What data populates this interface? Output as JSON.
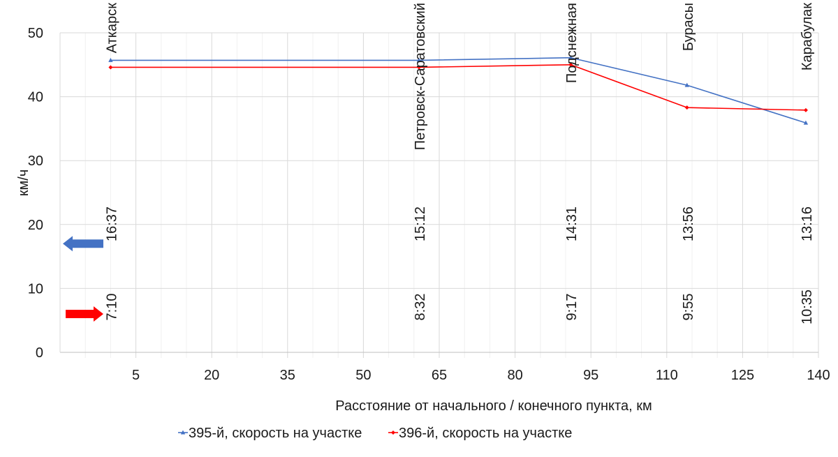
{
  "chart_data": {
    "type": "line",
    "xlabel": "Расстояние от начального / конечного пункта, км",
    "ylabel": "км/ч",
    "xlim": [
      -10,
      140
    ],
    "ylim": [
      0,
      50
    ],
    "x_ticks": [
      5,
      20,
      35,
      50,
      65,
      80,
      95,
      110,
      125,
      140
    ],
    "y_ticks": [
      0,
      10,
      20,
      30,
      40,
      50
    ],
    "minor_grid_step": 5,
    "grid": true,
    "legend_position": "bottom",
    "series": [
      {
        "name": "395-й, скорость на участке",
        "color": "#4472c4",
        "marker": "triangle",
        "points": [
          [
            0,
            45.7
          ],
          [
            61,
            45.7
          ],
          [
            91,
            46.1
          ],
          [
            114,
            41.8
          ],
          [
            137.5,
            35.9
          ]
        ]
      },
      {
        "name": "396-й, скорость на участке",
        "color": "#ff0000",
        "marker": "diamond",
        "points": [
          [
            0,
            44.6
          ],
          [
            61,
            44.6
          ],
          [
            91,
            45.0
          ],
          [
            114,
            38.3
          ],
          [
            137.5,
            37.9
          ]
        ]
      }
    ],
    "stations": [
      {
        "x": 0,
        "name": "Аткарск",
        "time_395": "16:37",
        "time_396": "7:10"
      },
      {
        "x": 61,
        "name": "Петровск-Саратовский",
        "time_395": "15:12",
        "time_396": "8:32"
      },
      {
        "x": 91,
        "name": "Подснежная",
        "time_395": "14:31",
        "time_396": "9:17"
      },
      {
        "x": 114,
        "name": "Бурасы",
        "time_395": "13:56",
        "time_396": "9:55"
      },
      {
        "x": 137.5,
        "name": "Карабулак",
        "time_395": "13:16",
        "time_396": "10:35"
      }
    ],
    "direction_arrows": [
      {
        "series": "395-й, скорость на участке",
        "direction": "left",
        "color": "#4472c4",
        "level": 17
      },
      {
        "series": "396-й, скорость на участке",
        "direction": "right",
        "color": "#ff0000",
        "level": 6
      }
    ]
  }
}
